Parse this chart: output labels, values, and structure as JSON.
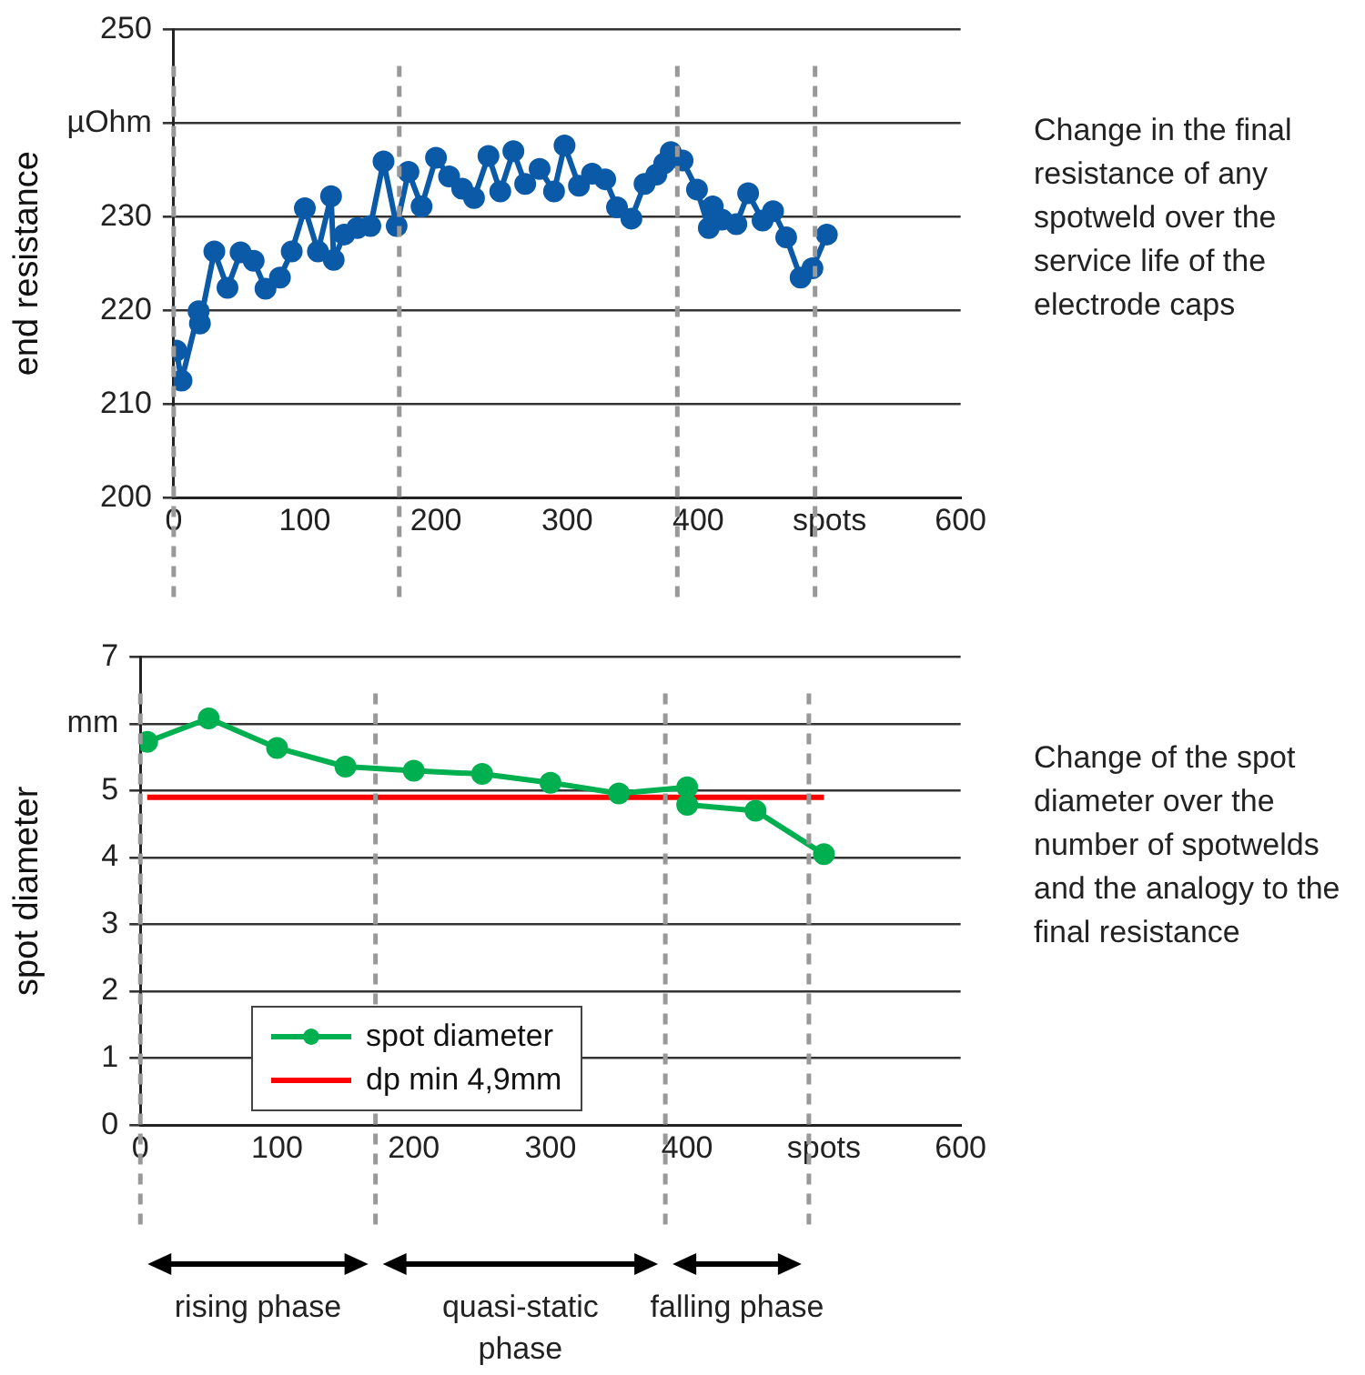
{
  "chart_data": [
    {
      "type": "line",
      "x": [
        2,
        6,
        19,
        20,
        31,
        41,
        51,
        61,
        70,
        81,
        90,
        100,
        110,
        120,
        122,
        130,
        140,
        150,
        160,
        170,
        179,
        189,
        200,
        210,
        220,
        229,
        240,
        249,
        259,
        268,
        279,
        290,
        298,
        309,
        319,
        329,
        338,
        349,
        359,
        368,
        374,
        379,
        388,
        399,
        408,
        411,
        418,
        429,
        438,
        449,
        457,
        467,
        478,
        487,
        498
      ],
      "series": [
        {
          "color": "#0b5aa8",
          "values": [
            215.7,
            212.5,
            219.9,
            218.6,
            226.3,
            222.4,
            226.2,
            225.3,
            222.3,
            223.5,
            226.3,
            230.9,
            226.3,
            232.2,
            225.4,
            228.1,
            228.8,
            229.0,
            235.9,
            229.0,
            234.8,
            231.1,
            236.3,
            234.3,
            233.0,
            232.0,
            236.5,
            232.7,
            237.0,
            233.5,
            235.1,
            232.7,
            237.6,
            233.3,
            234.6,
            234.0,
            231.0,
            229.8,
            233.5,
            234.5,
            235.7,
            236.9,
            236.0,
            232.9,
            228.8,
            231.1,
            229.7,
            229.2,
            232.5,
            229.6,
            230.6,
            227.8,
            223.5,
            224.5,
            228.1
          ]
        }
      ],
      "xlim": [
        0,
        600
      ],
      "xticks": [
        0,
        100,
        200,
        300,
        400,
        {
          "value": 500,
          "label": "spots"
        },
        600
      ],
      "ylim": [
        200,
        250
      ],
      "yticks": [
        200,
        210,
        220,
        230,
        {
          "value": 240,
          "label": "µOhm"
        },
        250
      ],
      "ylabel": "end resistance",
      "grid": "y",
      "marker": "circle",
      "legend": false,
      "ref_lines": [
        {
          "axis": "x",
          "value": 0,
          "color": "#999999",
          "line_style": "dashed"
        },
        {
          "axis": "x",
          "value": 172,
          "color": "#999999",
          "line_style": "dashed"
        },
        {
          "axis": "x",
          "value": 384,
          "color": "#999999",
          "line_style": "dashed"
        },
        {
          "axis": "x",
          "value": 489,
          "color": "#999999",
          "line_style": "dashed"
        }
      ],
      "annotations": [
        "Change in the final resistance of any spotweld over the service life of the electrode caps"
      ]
    },
    {
      "type": "line",
      "series": [
        {
          "name": "spot diameter",
          "color": "#00b050",
          "x": [
            5,
            50,
            100,
            150,
            200,
            250,
            300,
            350,
            400,
            400,
            450,
            500
          ],
          "values": [
            5.73,
            6.08,
            5.64,
            5.36,
            5.3,
            5.25,
            5.12,
            4.96,
            5.05,
            4.79,
            4.7,
            4.05
          ]
        },
        {
          "name": "dp min 4,9mm",
          "color": "#ff0000",
          "marker": "none",
          "x": [
            5,
            500
          ],
          "values": [
            4.9,
            4.9
          ]
        }
      ],
      "xlim": [
        0,
        600
      ],
      "xticks": [
        0,
        100,
        200,
        300,
        400,
        {
          "value": 500,
          "label": "spots"
        },
        600
      ],
      "ylim": [
        0,
        7
      ],
      "yticks": [
        0,
        1,
        2,
        3,
        4,
        5,
        {
          "value": 6,
          "label": "mm"
        },
        7
      ],
      "ylabel": "spot diameter",
      "grid": "y",
      "marker": "circle",
      "legend": "bottom left",
      "ref_lines": [
        {
          "axis": "x",
          "value": 0,
          "color": "#999999",
          "line_style": "dashed"
        },
        {
          "axis": "x",
          "value": 172,
          "color": "#999999",
          "line_style": "dashed"
        },
        {
          "axis": "x",
          "value": 384,
          "color": "#999999",
          "line_style": "dashed"
        },
        {
          "axis": "x",
          "value": 489,
          "color": "#999999",
          "line_style": "dashed"
        }
      ],
      "annotations": [
        "Change of the spot diameter over the number of spotwelds and the analogy to the final resistance",
        "rising phase",
        "quasi-static phase",
        "falling phase"
      ]
    }
  ]
}
